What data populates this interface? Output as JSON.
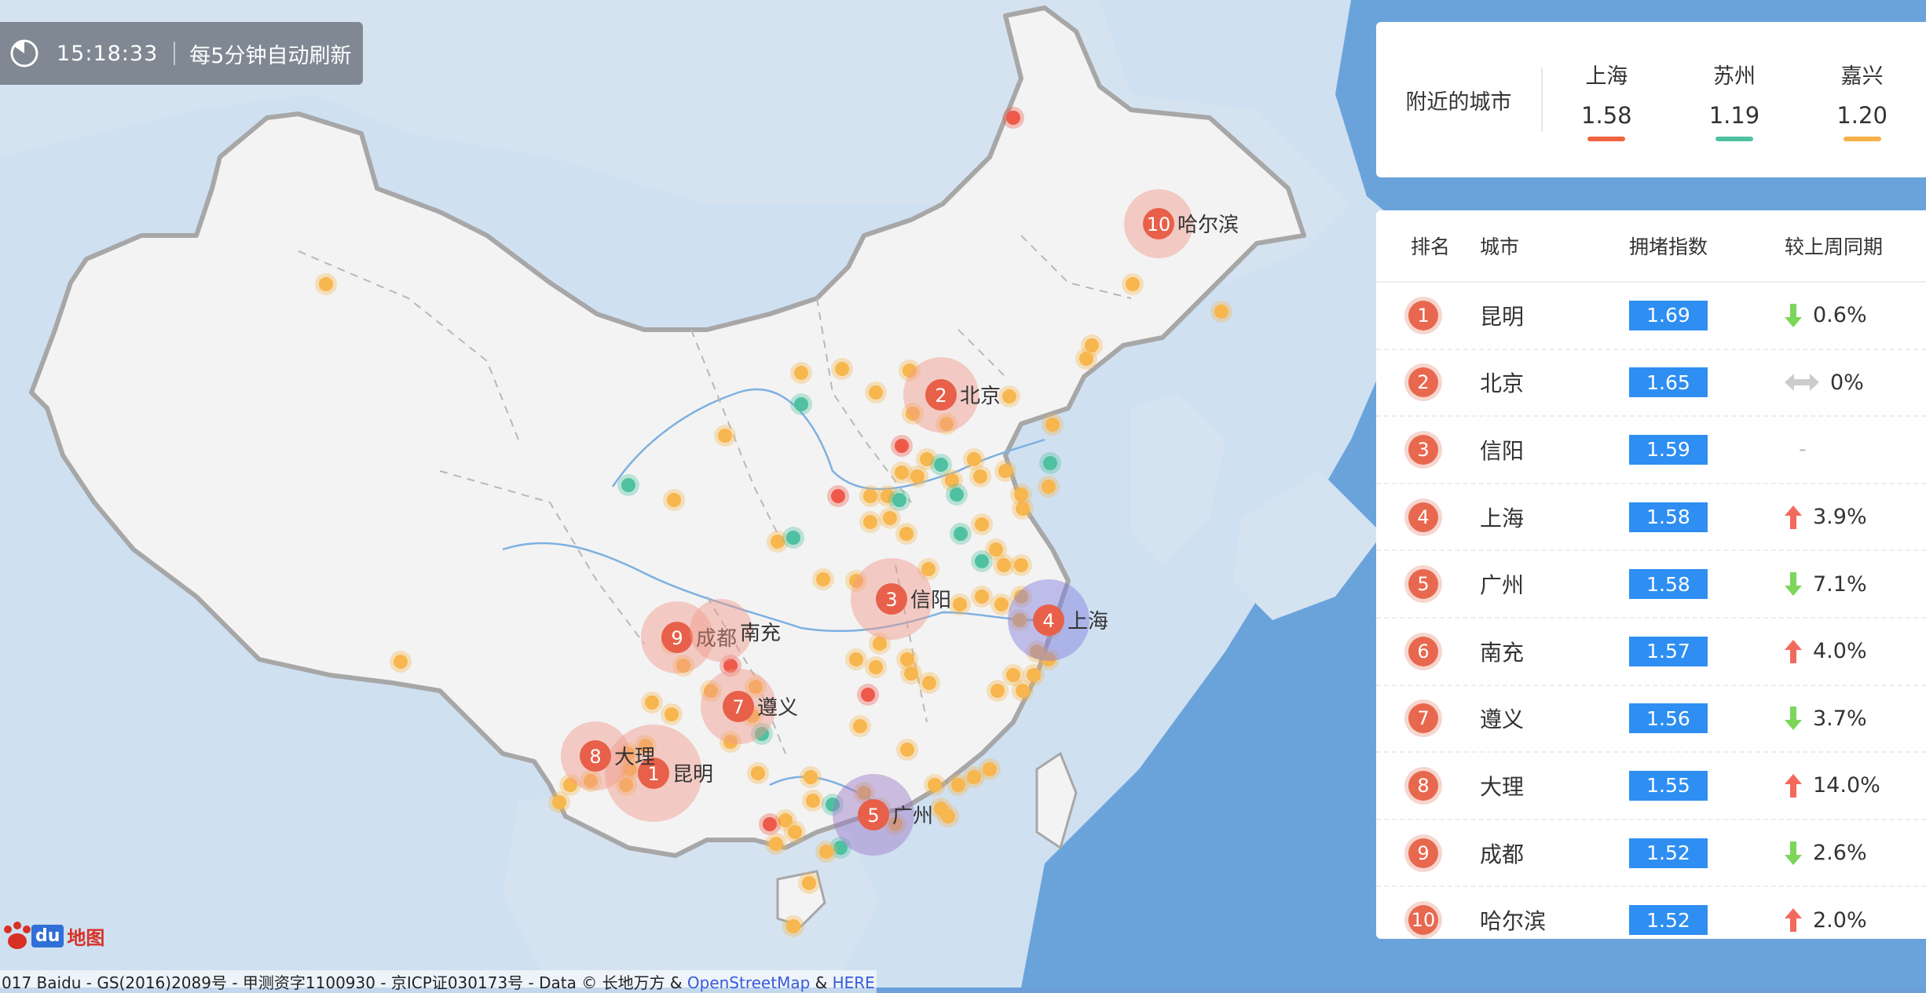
{
  "clock": {
    "time": "15:18:33",
    "note": "每5分钟自动刷新"
  },
  "nearby": {
    "label": "附近的城市",
    "cities": [
      {
        "name": "上海",
        "value": "1.58",
        "color": "#f0643f"
      },
      {
        "name": "苏州",
        "value": "1.19",
        "color": "#4fc1a0"
      },
      {
        "name": "嘉兴",
        "value": "1.20",
        "color": "#f6b04a"
      }
    ]
  },
  "ranking": {
    "headers": {
      "rank": "排名",
      "city": "城市",
      "index": "拥堵指数",
      "change": "较上周同期"
    },
    "rows": [
      {
        "rank": "1",
        "city": "昆明",
        "index": "1.69",
        "dir": "down",
        "change": "0.6%"
      },
      {
        "rank": "2",
        "city": "北京",
        "index": "1.65",
        "dir": "flat",
        "change": "0%"
      },
      {
        "rank": "3",
        "city": "信阳",
        "index": "1.59",
        "dir": "none",
        "change": "-"
      },
      {
        "rank": "4",
        "city": "上海",
        "index": "1.58",
        "dir": "up",
        "change": "3.9%"
      },
      {
        "rank": "5",
        "city": "广州",
        "index": "1.58",
        "dir": "down",
        "change": "7.1%"
      },
      {
        "rank": "6",
        "city": "南充",
        "index": "1.57",
        "dir": "up",
        "change": "4.0%"
      },
      {
        "rank": "7",
        "city": "遵义",
        "index": "1.56",
        "dir": "down",
        "change": "3.7%"
      },
      {
        "rank": "8",
        "city": "大理",
        "index": "1.55",
        "dir": "up",
        "change": "14.0%"
      },
      {
        "rank": "9",
        "city": "成都",
        "index": "1.52",
        "dir": "down",
        "change": "2.6%"
      },
      {
        "rank": "10",
        "city": "哈尔滨",
        "index": "1.52",
        "dir": "up",
        "change": "2.0%"
      }
    ]
  },
  "map": {
    "ranked_labels": [
      {
        "rank": "1",
        "name": "昆明"
      },
      {
        "rank": "2",
        "name": "北京"
      },
      {
        "rank": "3",
        "name": "信阳"
      },
      {
        "rank": "4",
        "name": "上海"
      },
      {
        "rank": "5",
        "name": "广州"
      },
      {
        "rank": "7",
        "name": "遵义"
      },
      {
        "rank": "8",
        "name": "大理"
      },
      {
        "rank": "9",
        "name": "成都"
      },
      {
        "rank": "10",
        "name": "哈尔滨"
      }
    ],
    "extra_label": "南充"
  },
  "colors": {
    "up": "#f26a5e",
    "down": "#7bd65a",
    "flat": "#cccccc",
    "index_box": "#2e8ef2",
    "dot_orange": "#f7b64e",
    "dot_green": "#4fc1a0",
    "dot_red": "#ee5a4a"
  },
  "footer": {
    "logo_text": "du",
    "logo_map": "地图",
    "copyright": "017 Baidu - GS(2016)2089号 - 甲测资字1100930 - 京ICP证030173号 - Data © 长地万方 & ",
    "link1": "OpenStreetMap",
    "amp": " & ",
    "link2": "HERE"
  }
}
